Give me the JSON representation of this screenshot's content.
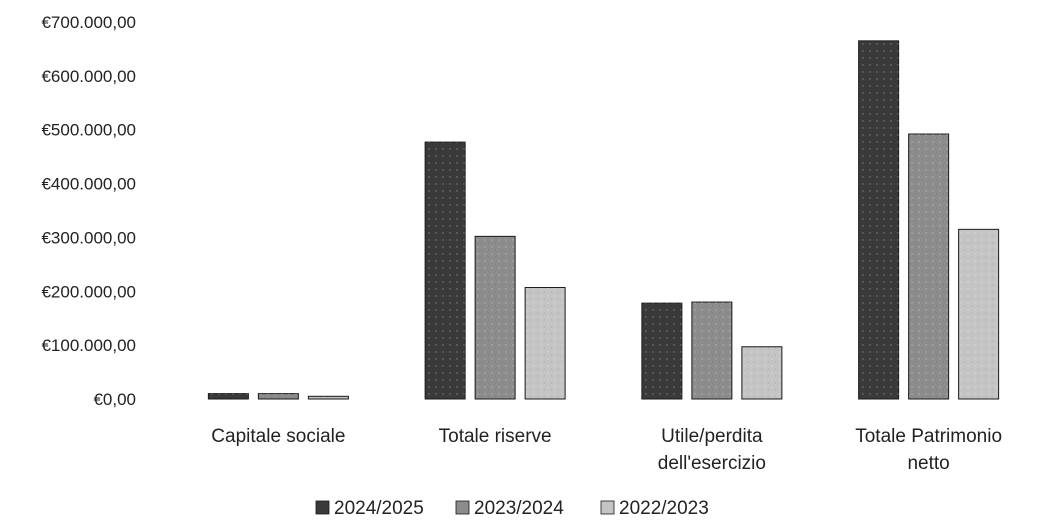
{
  "chart_data": {
    "type": "bar",
    "title": "",
    "xlabel": "",
    "ylabel": "",
    "ylim": [
      0,
      700000
    ],
    "ytick_values": [
      0,
      100000,
      200000,
      300000,
      400000,
      500000,
      600000,
      700000
    ],
    "ytick_labels": [
      "€0,00",
      "€100.000,00",
      "€200.000,00",
      "€300.000,00",
      "€400.000,00",
      "€500.000,00",
      "€600.000,00",
      "€700.000,00"
    ],
    "categories": [
      [
        "Capitale sociale"
      ],
      [
        "Totale riserve"
      ],
      [
        "Utile/perdita",
        "dell'esercizio"
      ],
      [
        "Totale Patrimonio",
        "netto"
      ]
    ],
    "series": [
      {
        "name": "2024/2025",
        "color": "#3a3a3a",
        "values": [
          10000,
          477000,
          178000,
          665000
        ]
      },
      {
        "name": "2023/2024",
        "color": "#8c8c8c",
        "values": [
          10000,
          302000,
          180000,
          492000
        ]
      },
      {
        "name": "2022/2023",
        "color": "#c4c4c4",
        "values": [
          5000,
          207000,
          97000,
          315000
        ]
      }
    ],
    "grid": false,
    "legend_position": "bottom"
  }
}
